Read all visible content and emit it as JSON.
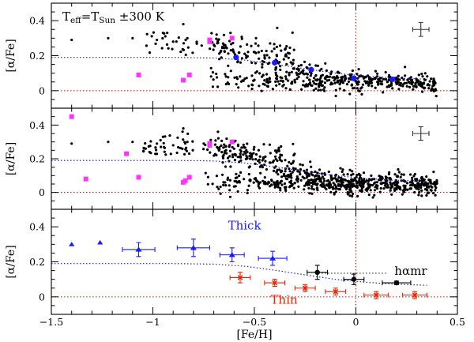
{
  "chart_data": {
    "type": "scatter",
    "x_range": [
      -1.5,
      0.5
    ],
    "x_ticks": [
      -1.5,
      -1,
      -0.5,
      0,
      0.5
    ],
    "x_tick_labels": [
      "−1.5",
      "−1",
      "−0.5",
      "0",
      "0.5"
    ],
    "x_label": "[Fe/H]",
    "y_label": "[α/Fe]",
    "sun_feh_line": 0,
    "sun_alpha_line": 0,
    "panels": [
      {
        "id": "top",
        "ylim": [
          -0.1,
          0.5
        ],
        "y_ticks": [
          0,
          0.2,
          0.4
        ],
        "y_tick_labels": [
          "0",
          "0.2",
          "0.4"
        ],
        "title_text": "T",
        "title_sub1": "eff",
        "title_mid": "=T",
        "title_sub2": "Sun",
        "title_end": "±300  K",
        "dividing_curve": [
          [
            -1.5,
            0.19
          ],
          [
            -0.9,
            0.19
          ],
          [
            -0.7,
            0.187
          ],
          [
            -0.55,
            0.175
          ],
          [
            -0.4,
            0.152
          ],
          [
            -0.25,
            0.125
          ],
          [
            -0.1,
            0.1
          ],
          [
            0.05,
            0.083
          ],
          [
            0.2,
            0.072
          ],
          [
            0.35,
            0.066
          ]
        ],
        "magenta_points": [
          [
            -1.07,
            0.09
          ],
          [
            -0.85,
            0.06
          ],
          [
            -0.82,
            0.09
          ],
          [
            -0.72,
            0.29
          ],
          [
            -0.72,
            0.28
          ],
          [
            -0.61,
            0.3
          ]
        ],
        "blue_points": [
          [
            -0.59,
            0.19
          ],
          [
            -0.4,
            0.16
          ],
          [
            -0.22,
            0.12
          ],
          [
            -0.01,
            0.07
          ],
          [
            0.18,
            0.065
          ]
        ],
        "black_cloud": {
          "n": 560,
          "seed": 11
        },
        "error_bar": {
          "x": 0.32,
          "y": 0.35,
          "dx": 0.04,
          "dy": 0.04
        }
      },
      {
        "id": "middle",
        "ylim": [
          -0.1,
          0.5
        ],
        "y_ticks": [
          0,
          0.2,
          0.4
        ],
        "y_tick_labels": [
          "0",
          "0.2",
          "0.4"
        ],
        "dividing_curve": [
          [
            -1.5,
            0.19
          ],
          [
            -0.9,
            0.19
          ],
          [
            -0.7,
            0.187
          ],
          [
            -0.55,
            0.175
          ],
          [
            -0.4,
            0.152
          ],
          [
            -0.25,
            0.125
          ],
          [
            -0.1,
            0.1
          ],
          [
            0.05,
            0.083
          ],
          [
            0.2,
            0.072
          ],
          [
            0.35,
            0.066
          ]
        ],
        "magenta_points": [
          [
            -1.4,
            0.45
          ],
          [
            -1.33,
            0.08
          ],
          [
            -1.13,
            0.23
          ],
          [
            -1.07,
            0.09
          ],
          [
            -0.85,
            0.06
          ],
          [
            -0.84,
            0.07
          ],
          [
            -0.82,
            0.09
          ],
          [
            -0.72,
            0.29
          ],
          [
            -0.72,
            0.28
          ],
          [
            -0.61,
            0.3
          ]
        ],
        "black_cloud": {
          "n": 820,
          "seed": 29
        },
        "error_bar": {
          "x": 0.32,
          "y": 0.35,
          "dx": 0.04,
          "dy": 0.04
        }
      },
      {
        "id": "bottom",
        "ylim": [
          -0.1,
          0.5
        ],
        "y_ticks": [
          0,
          0.2,
          0.4
        ],
        "y_tick_labels": [
          "0",
          "0.2",
          "0.4"
        ],
        "dividing_curve": [
          [
            -1.5,
            0.19
          ],
          [
            -0.9,
            0.19
          ],
          [
            -0.7,
            0.187
          ],
          [
            -0.55,
            0.175
          ],
          [
            -0.4,
            0.152
          ],
          [
            -0.25,
            0.125
          ],
          [
            -0.1,
            0.1
          ],
          [
            0.05,
            0.083
          ],
          [
            0.2,
            0.072
          ],
          [
            0.35,
            0.066
          ]
        ],
        "hamr_line": [
          [
            -0.2,
            0.135
          ],
          [
            0.15,
            0.135
          ]
        ],
        "thick_label": "Thick",
        "thin_label": "Thin",
        "hamr_label": "hαmr",
        "thick_triangles_open": [
          [
            -1.4,
            0.3
          ],
          [
            -1.26,
            0.31
          ]
        ],
        "thick_series": [
          {
            "x": -1.07,
            "y": 0.27,
            "xerr": 0.08,
            "yerr": 0.04
          },
          {
            "x": -0.8,
            "y": 0.28,
            "xerr": 0.08,
            "yerr": 0.05
          },
          {
            "x": -0.61,
            "y": 0.24,
            "xerr": 0.06,
            "yerr": 0.04
          },
          {
            "x": -0.41,
            "y": 0.22,
            "xerr": 0.07,
            "yerr": 0.04
          }
        ],
        "thin_series": [
          {
            "x": -0.57,
            "y": 0.11,
            "xerr": 0.05,
            "yerr": 0.03
          },
          {
            "x": -0.4,
            "y": 0.08,
            "xerr": 0.05,
            "yerr": 0.02
          },
          {
            "x": -0.25,
            "y": 0.05,
            "xerr": 0.05,
            "yerr": 0.02
          },
          {
            "x": -0.1,
            "y": 0.03,
            "xerr": 0.05,
            "yerr": 0.02
          },
          {
            "x": 0.1,
            "y": 0.01,
            "xerr": 0.06,
            "yerr": 0.02
          },
          {
            "x": 0.29,
            "y": 0.01,
            "xerr": 0.06,
            "yerr": 0.02
          }
        ],
        "hamr_series": [
          {
            "x": -0.19,
            "y": 0.14,
            "xerr": 0.05,
            "yerr": 0.04
          },
          {
            "x": -0.01,
            "y": 0.1,
            "xerr": 0.05,
            "yerr": 0.03
          },
          {
            "x": 0.2,
            "y": 0.08,
            "xerr": 0.07,
            "yerr": 0.01
          }
        ]
      }
    ],
    "colors": {
      "magenta": "#ff33ff",
      "blue": "#1a1aff",
      "red": "#ee2200",
      "dotted_blue": "#2222cc",
      "ref_red": "#dd0000",
      "black": "#000000",
      "dark_gray": "#333333"
    }
  }
}
